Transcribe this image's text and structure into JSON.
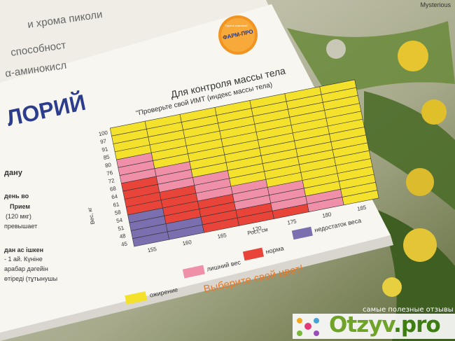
{
  "watermark": {
    "site_label": "Mysterious",
    "tagline": "самые полезные отзывы",
    "brand": "Otzyv",
    "brand_tld": ".pro"
  },
  "box": {
    "logo_top": "Группа компаний",
    "logo_main": "ФАРМ-ПРО",
    "product_title_fragment": "ЛОРИЙ",
    "top_text": [
      "и хрома пиколи",
      "способност",
      "α-аминокисл"
    ],
    "left_side_text": [
      "дану",
      "день во",
      "Прием",
      "(120 мкг)",
      "превышает",
      "дан  ас  ішкен",
      "- 1 ай. Күніне",
      "арабар дәгейін",
      "өтіреді (тұтынушы"
    ]
  },
  "chart_data": {
    "type": "heatmap",
    "title": "Для контроля массы тела",
    "subtitle": "\"Проверьте свой ИМТ (индекс массы тела)",
    "xlabel": "Рост, см",
    "ylabel": "Вес, кг",
    "x_ticks": [
      "155",
      "160",
      "165",
      "170",
      "175",
      "180",
      "185"
    ],
    "y_ticks": [
      "45",
      "48",
      "51",
      "54",
      "58",
      "61",
      "64",
      "68",
      "72",
      "76",
      "80",
      "85",
      "91",
      "97",
      "100"
    ],
    "legend": [
      {
        "label": "ожирение",
        "color": "#f4e12c"
      },
      {
        "label": "лишний вес",
        "color": "#f08fa8"
      },
      {
        "label": "норма",
        "color": "#e8443a"
      },
      {
        "label": "недостаток веса",
        "color": "#7b6fb0"
      }
    ],
    "cta": "Выберите свой цвет!"
  }
}
